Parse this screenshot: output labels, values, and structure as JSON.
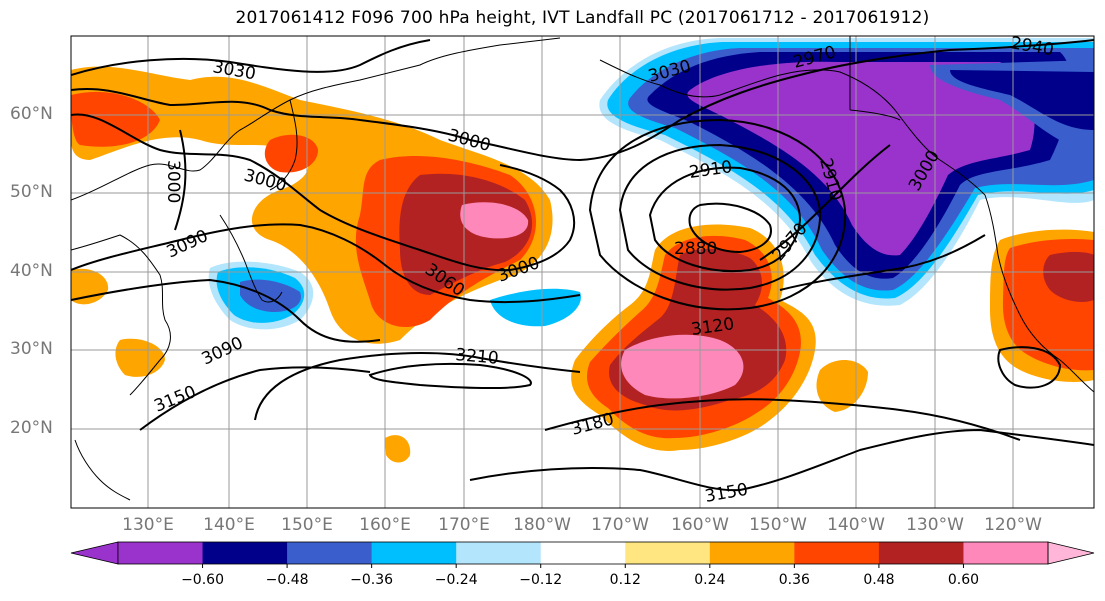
{
  "title": "2017061412 F096 700 hPa height, IVT Landfall PC (2017061712 - 2017061912)",
  "lat_labels": [
    "60°N",
    "50°N",
    "40°N",
    "30°N",
    "20°N"
  ],
  "lon_labels": [
    "130°E",
    "140°E",
    "150°E",
    "160°E",
    "170°E",
    "180°W",
    "170°W",
    "160°W",
    "150°W",
    "140°W",
    "130°W",
    "120°W"
  ],
  "contour_labels": [
    "3030",
    "3000",
    "3000",
    "3000",
    "3090",
    "3060",
    "3000",
    "2910",
    "2880",
    "2970",
    "3120",
    "3090",
    "3210",
    "3150",
    "3180",
    "3150",
    "2970",
    "2940",
    "3000",
    "2910",
    "3030"
  ],
  "colorbar": {
    "ticks": [
      "−0.60",
      "−0.48",
      "−0.36",
      "−0.24",
      "−0.12",
      "0.12",
      "0.24",
      "0.36",
      "0.48",
      "0.60"
    ],
    "colors": [
      "#9933cc",
      "#00008b",
      "#3a5fcd",
      "#00bfff",
      "#b3e5fc",
      "#ffffff",
      "#ffe680",
      "#ffa500",
      "#ff4500",
      "#b22222",
      "#ff88bb",
      "#ffb6d9"
    ]
  },
  "colors": {
    "purple": "#9933cc",
    "navy": "#00008b",
    "blue": "#3a5fcd",
    "sky": "#00bfff",
    "pale_blue": "#b3e5fc",
    "yellow": "#ffe680",
    "orange": "#ffa500",
    "red_orange": "#ff4500",
    "dark_red": "#b22222",
    "pink": "#ff88bb"
  }
}
